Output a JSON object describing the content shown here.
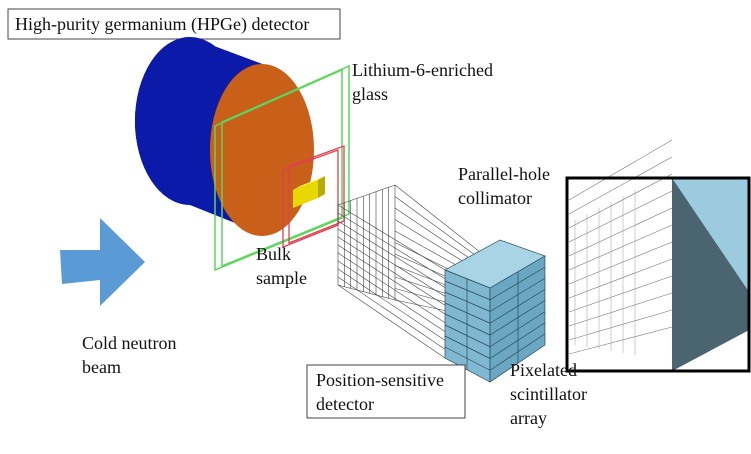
{
  "title": "High-purity germanium (HPGe) detector",
  "labels": {
    "lithium_glass": [
      "Lithium-6-enriched",
      "glass"
    ],
    "collimator": [
      "Parallel-hole",
      "collimator"
    ],
    "bulk_sample": [
      "Bulk",
      "sample"
    ],
    "neutron_beam": [
      "Cold neutron",
      "beam"
    ],
    "position_detector": [
      "Position-sensitive",
      "detector"
    ],
    "scintillator": [
      "Pixelated",
      "scintillator",
      "array"
    ]
  }
}
